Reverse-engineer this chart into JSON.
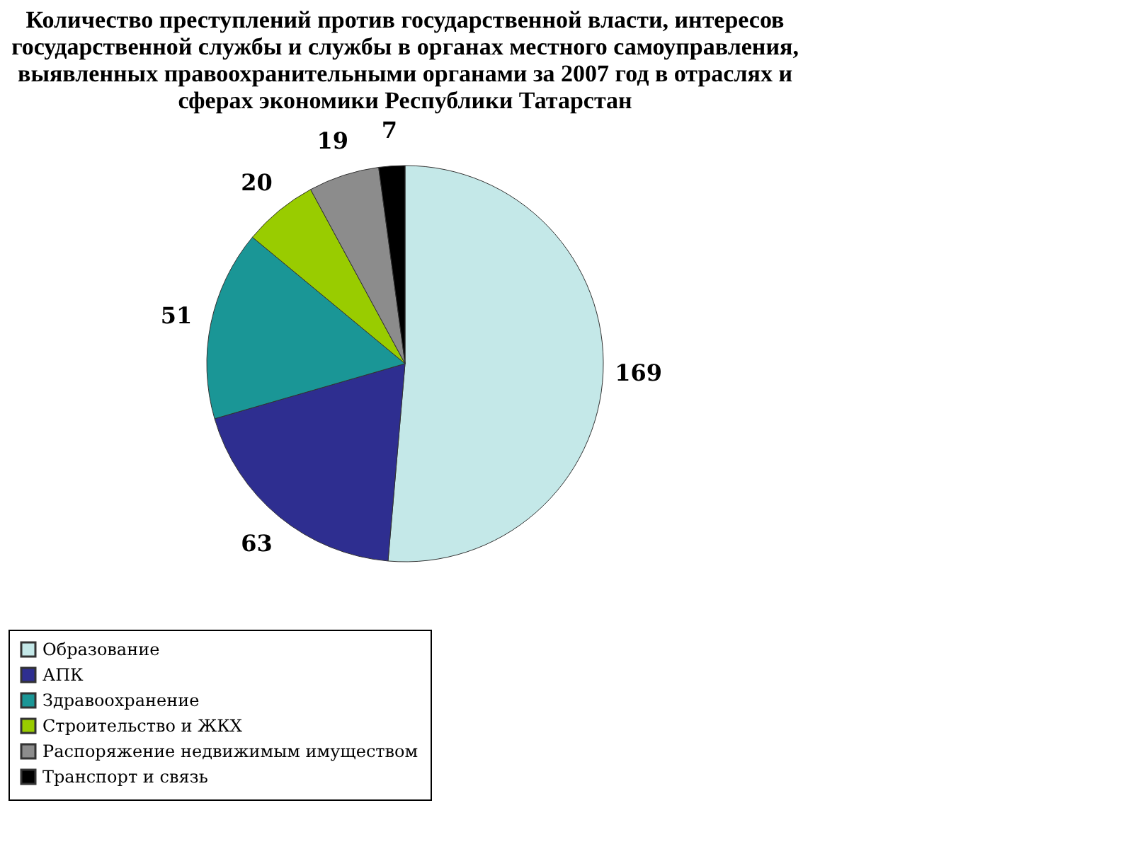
{
  "chart_data": {
    "type": "pie",
    "title": "Количество преступлений против государственной власти, интересов\nгосударственной службы и службы в органах местного самоуправления,\nвыявленных правоохранительными органами за 2007 год в отраслях и\nсферах экономики Республики Татарстан",
    "categories": [
      "Образование",
      "АПК",
      "Здравоохранение",
      "Строительство и ЖКХ",
      "Распоряжение недвижимым имуществом",
      "Транспорт и связь"
    ],
    "values": [
      169,
      63,
      51,
      20,
      19,
      7
    ],
    "colors": [
      "#c4e8e8",
      "#2e2e90",
      "#1a9696",
      "#99cc00",
      "#8c8c8c",
      "#000000"
    ],
    "data_labels": true,
    "legend": "bottom"
  }
}
